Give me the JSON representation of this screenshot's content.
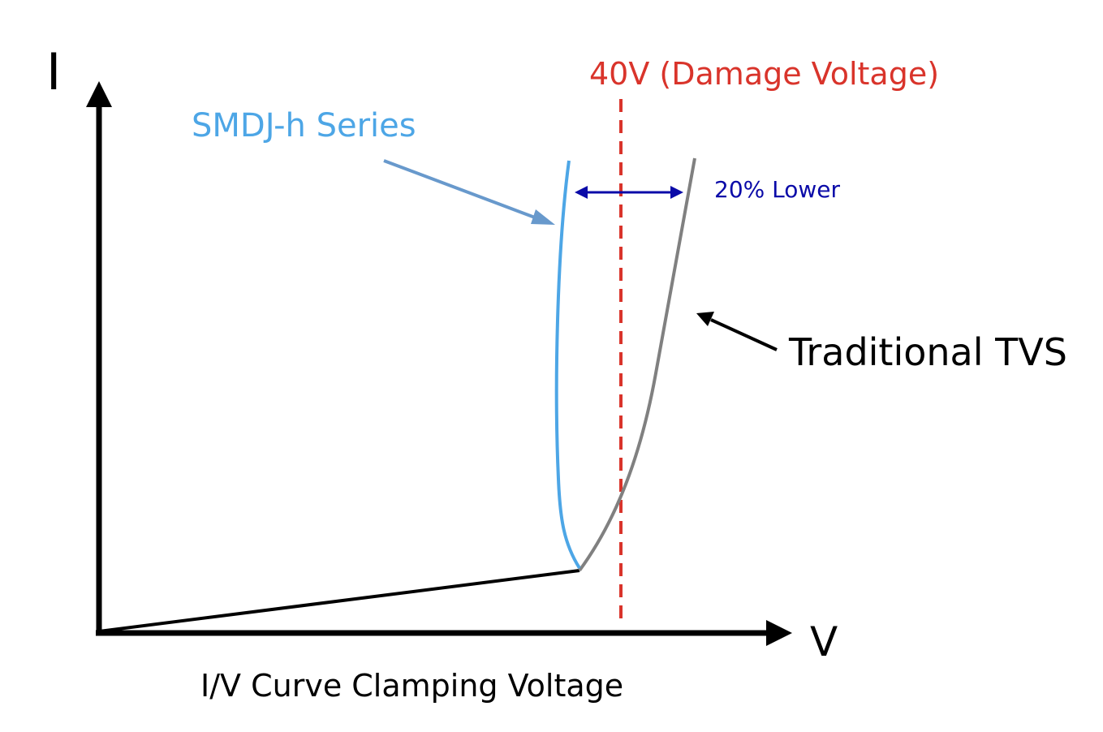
{
  "axes": {
    "y_label": "I",
    "x_label": "V",
    "caption": "I/V Curve Clamping Voltage"
  },
  "damage_line": {
    "label": "40V (Damage Voltage)",
    "color": "#d9342b"
  },
  "smdj": {
    "label": "SMDJ-h Series",
    "color": "#4da6e6",
    "arrow_color": "#6899cc"
  },
  "traditional": {
    "label": "Traditional TVS",
    "color": "#808080",
    "arrow_color": "#000000"
  },
  "comparison": {
    "label": "20% Lower",
    "color": "#0a0aa8"
  },
  "baseline": {
    "color": "#000000"
  }
}
